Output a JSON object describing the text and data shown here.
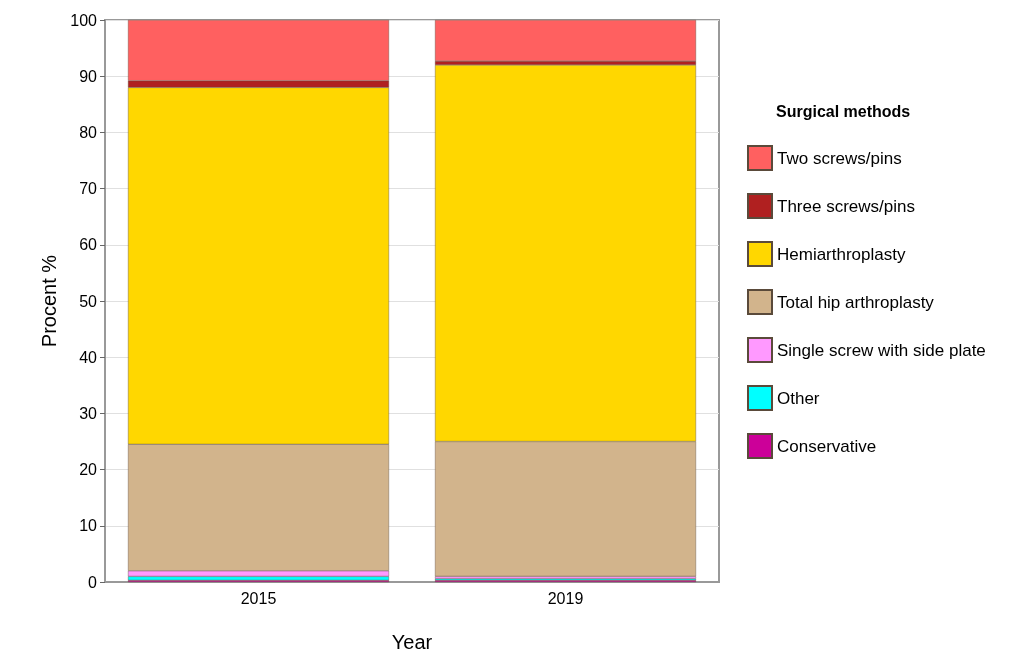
{
  "chart_data": {
    "type": "bar",
    "stacked": true,
    "xlabel": "Year",
    "ylabel": "Procent %",
    "legend_title": "Surgical methods",
    "legend": "right",
    "categories": [
      "2015",
      "2019"
    ],
    "series": [
      {
        "name": "Conservative",
        "color": "#cc0099",
        "values": [
          0.3,
          0.3
        ]
      },
      {
        "name": "Other",
        "color": "#00ffff",
        "values": [
          0.7,
          0.3
        ]
      },
      {
        "name": "Single screw with side plate",
        "color": "#ff99ff",
        "values": [
          1.0,
          0.4
        ]
      },
      {
        "name": "Total hip arthroplasty",
        "color": "#d2b48c",
        "values": [
          22.5,
          24.0
        ]
      },
      {
        "name": "Hemiarthroplasty",
        "color": "#ffd700",
        "values": [
          63.5,
          67.0
        ]
      },
      {
        "name": "Three screws/pins",
        "color": "#b02020",
        "values": [
          1.2,
          0.7
        ]
      },
      {
        "name": "Two screws/pins",
        "color": "#ff6060",
        "values": [
          10.8,
          7.3
        ]
      }
    ],
    "ylim": [
      0,
      100
    ],
    "yticks": [
      0,
      10,
      20,
      30,
      40,
      50,
      60,
      70,
      80,
      90,
      100
    ],
    "grid": "y"
  }
}
